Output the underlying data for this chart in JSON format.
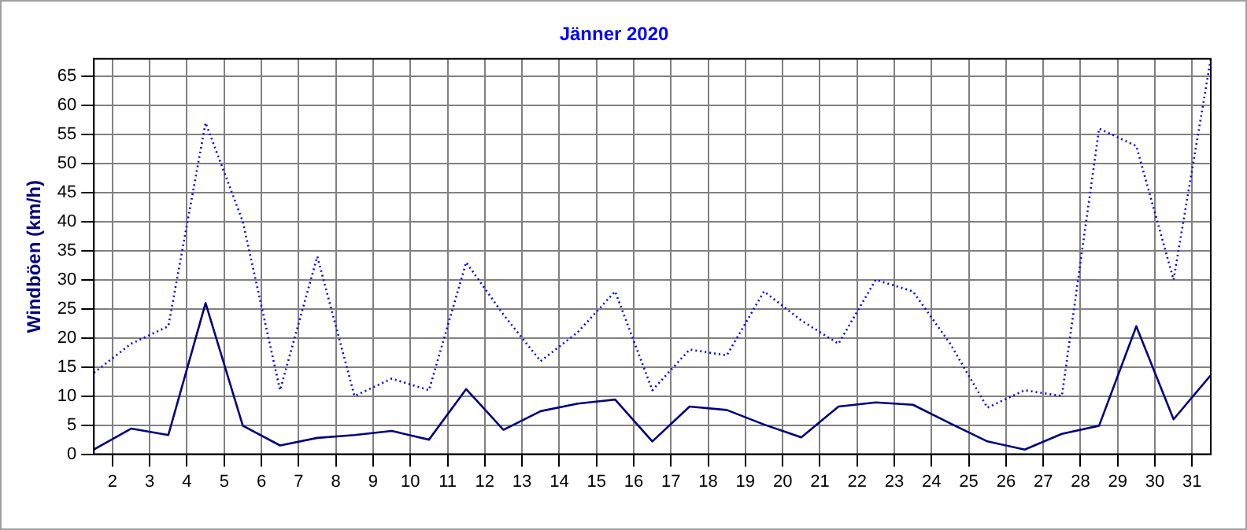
{
  "chart_data": {
    "type": "line",
    "title": "Jänner 2020",
    "ylabel": "Windböen (km/h)",
    "x": [
      1.5,
      2.5,
      3.5,
      4.5,
      5.5,
      6.5,
      7.5,
      8.5,
      9.5,
      10.5,
      11.5,
      12.5,
      13.5,
      14.5,
      15.5,
      16.5,
      17.5,
      18.5,
      19.5,
      20.5,
      21.5,
      22.5,
      23.5,
      24.5,
      25.5,
      26.5,
      27.5,
      28.5,
      29.5,
      30.5,
      31.5
    ],
    "series": [
      {
        "color": "#0000ff",
        "line_style": "dotted",
        "values": [
          14,
          19,
          22,
          57,
          40,
          11,
          34,
          10,
          13,
          11,
          33,
          24,
          16,
          21,
          28,
          11,
          18,
          17,
          28,
          23,
          19,
          30,
          28,
          19,
          8,
          11,
          10,
          56,
          53,
          30,
          68
        ]
      },
      {
        "color": "#000080",
        "line_style": "solid",
        "values": [
          0.8,
          4.4,
          3.3,
          26,
          4.9,
          1.5,
          2.8,
          3.3,
          4,
          2.5,
          11.2,
          4.2,
          7.4,
          8.7,
          9.4,
          2.2,
          8.2,
          7.6,
          5.1,
          2.9,
          8.2,
          8.9,
          8.5,
          5.3,
          2.2,
          0.8,
          3.5,
          4.9,
          22,
          6,
          13.6
        ]
      }
    ],
    "xlim": [
      1.5,
      31.5
    ],
    "xticks": [
      2,
      3,
      4,
      5,
      6,
      7,
      8,
      9,
      10,
      11,
      12,
      13,
      14,
      15,
      16,
      17,
      18,
      19,
      20,
      21,
      22,
      23,
      24,
      25,
      26,
      27,
      28,
      29,
      30,
      31
    ],
    "ylim": [
      0,
      68
    ],
    "yticks": [
      0,
      5,
      10,
      15,
      20,
      25,
      30,
      35,
      40,
      45,
      50,
      55,
      60,
      65
    ],
    "grid": true,
    "legend": false,
    "marker": "none"
  }
}
